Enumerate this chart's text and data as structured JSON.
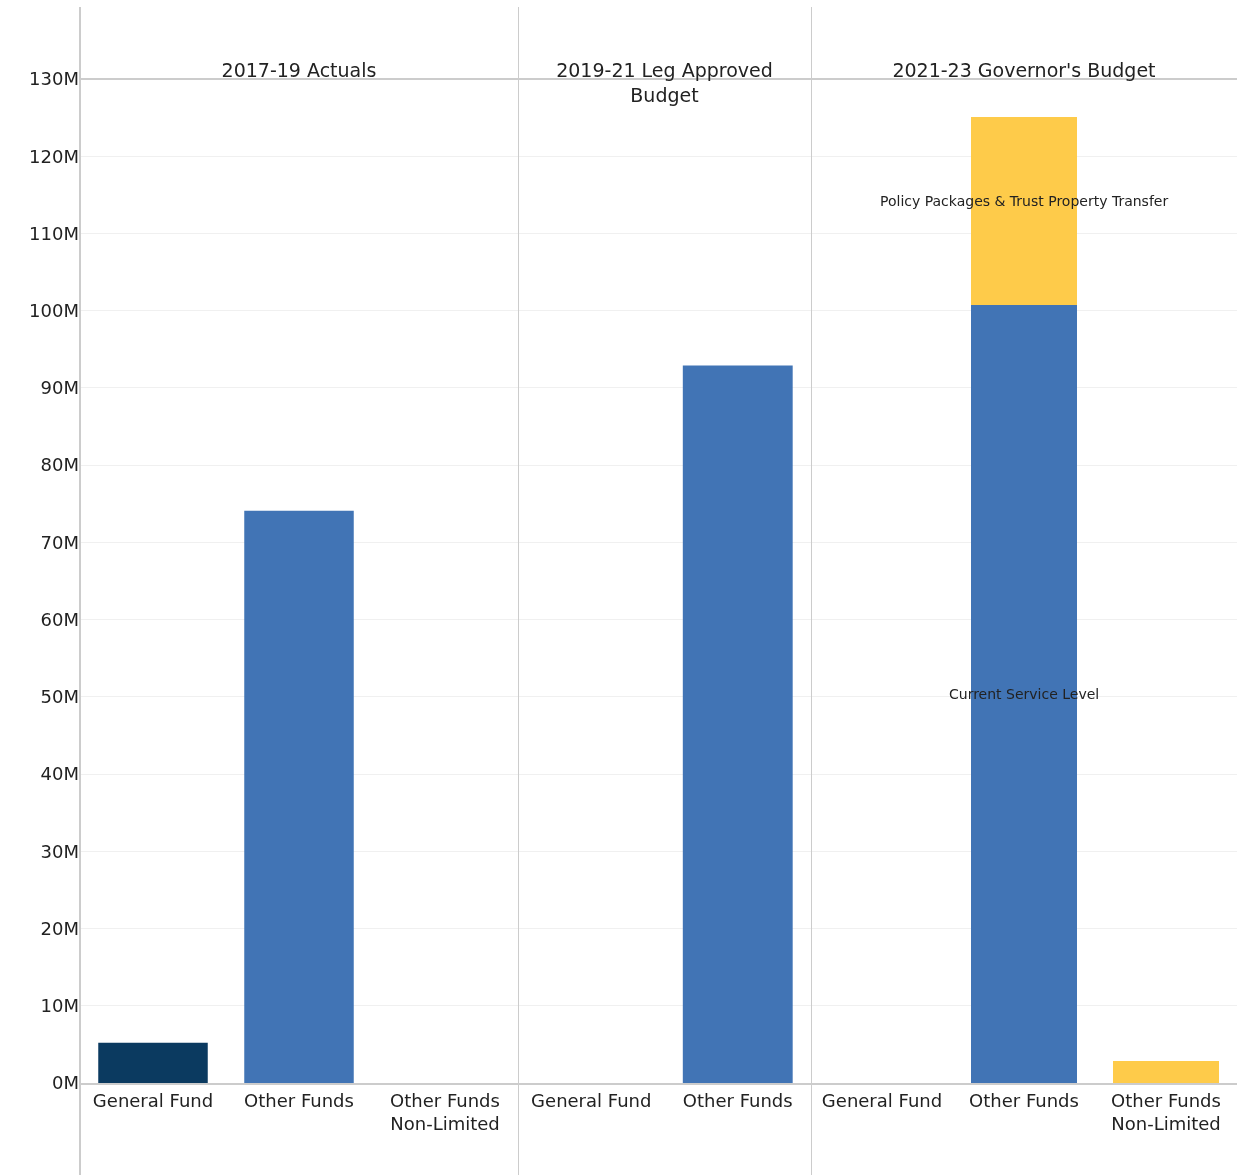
{
  "chart_data": [
    {
      "type": "bar",
      "title": "2017-19 Actuals",
      "categories": [
        "General Fund",
        "Other Funds",
        "Other Funds Non-Limited"
      ],
      "values": [
        5.2,
        74.1,
        null
      ],
      "colors": [
        "#0b3a60",
        "#4174b5",
        "#4174b5"
      ],
      "ylim": [
        0,
        130
      ],
      "yticks": [
        {
          "value": 0,
          "label": "0M"
        },
        {
          "value": 10,
          "label": "10M"
        },
        {
          "value": 20,
          "label": "20M"
        },
        {
          "value": 30,
          "label": "30M"
        },
        {
          "value": 40,
          "label": "40M"
        },
        {
          "value": 50,
          "label": "50M"
        },
        {
          "value": 60,
          "label": "60M"
        },
        {
          "value": 70,
          "label": "70M"
        },
        {
          "value": 80,
          "label": "80M"
        },
        {
          "value": 90,
          "label": "90M"
        },
        {
          "value": 100,
          "label": "100M"
        },
        {
          "value": 110,
          "label": "110M"
        },
        {
          "value": 120,
          "label": "120M"
        },
        {
          "value": 130,
          "label": "130M"
        }
      ],
      "grid": "y",
      "legend": false
    },
    {
      "type": "bar",
      "title": "2019-21 Leg Approved Budget",
      "categories": [
        "General Fund",
        "Other Funds"
      ],
      "values": [
        null,
        92.9
      ],
      "colors": [
        "#4174b5",
        "#4174b5"
      ],
      "ylim": [
        0,
        130
      ],
      "yticks": [
        0,
        10,
        20,
        30,
        40,
        50,
        60,
        70,
        80,
        90,
        100,
        110,
        120,
        130
      ],
      "grid": "y",
      "legend": false,
      "tick_labels": "x"
    },
    {
      "type": "bar",
      "title": "2021-23 Governor's Budget",
      "categories": [
        "General Fund",
        "Other Funds",
        "Other Funds Non-Limited"
      ],
      "stacked": true,
      "series": [
        {
          "name": "Current Service Level",
          "color": "#4174b5",
          "values": [
            null,
            100.8,
            null
          ]
        },
        {
          "name": "Policy Packages & Trust Property Transfer",
          "color": "#fecb4a",
          "values": [
            null,
            24.3,
            2.8
          ]
        }
      ],
      "ylim": [
        0,
        130
      ],
      "yticks": [
        0,
        10,
        20,
        30,
        40,
        50,
        60,
        70,
        80,
        90,
        100,
        110,
        120,
        130
      ],
      "grid": "y",
      "legend": false,
      "tick_labels": "x"
    }
  ]
}
